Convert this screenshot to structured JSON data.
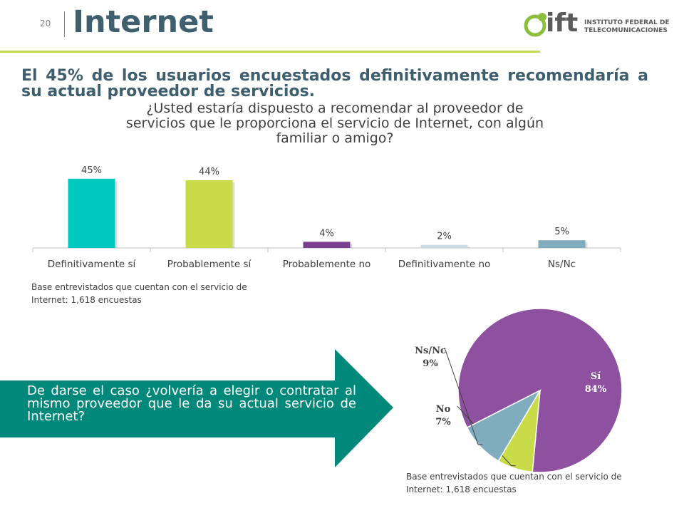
{
  "header": {
    "page_number": "20",
    "title": "Internet",
    "logo_text": "ift",
    "logo_subtitle_line1": "INSTITUTO FEDERAL DE",
    "logo_subtitle_line2": "TELECOMUNICACIONES"
  },
  "headline": "El 45% de los usuarios encuestados definitivamente recomendaría a su actual proveedor de servicios.",
  "question": "¿Usted estaría dispuesto a recomendar al proveedor de servicios que le proporciona el servicio de Internet, con algún familiar o amigo?",
  "callout": "De darse el caso ¿volvería a elegir o contratar al mismo proveedor que le da su actual servicio de Internet?",
  "base_note_top": [
    "Base entrevistados que cuentan con el servicio de",
    "Internet: 1,618 encuestas"
  ],
  "base_note_bottom": [
    "Base entrevistados que cuentan con el servicio de",
    "Internet: 1,618 encuestas"
  ],
  "colors": {
    "title": "#3f5f6f",
    "accent_green": "#c3d94e",
    "teal": "#00897b",
    "purple": "#8e51a0",
    "cyan": "#00c9c0",
    "lime": "#c8dc4a",
    "violet": "#7a3f8f",
    "light_blue": "#c9dbe3",
    "steel_blue": "#7fadbd"
  },
  "chart_data": [
    {
      "type": "bar",
      "categories": [
        "Definitivamente sí",
        "Probablemente sí",
        "Probablemente no",
        "Definitivamente no",
        "Ns/Nc"
      ],
      "values": [
        45,
        44,
        4,
        2,
        5
      ],
      "data_labels": [
        "45%",
        "44%",
        "4%",
        "2%",
        "5%"
      ],
      "bar_colors": [
        "#00c9c0",
        "#c8dc4a",
        "#7a3f8f",
        "#c9dbe3",
        "#7fadbd"
      ],
      "ylim": [
        0,
        50
      ],
      "grid": false
    },
    {
      "type": "pie",
      "slices": [
        {
          "label": "Sí",
          "value": 84,
          "text": "84%",
          "color": "#8e51a0"
        },
        {
          "label": "No",
          "value": 7,
          "text": "7%",
          "color": "#c8dc4a"
        },
        {
          "label": "Ns/Nc",
          "value": 9,
          "text": "9%",
          "color": "#7fadbd"
        }
      ]
    }
  ]
}
